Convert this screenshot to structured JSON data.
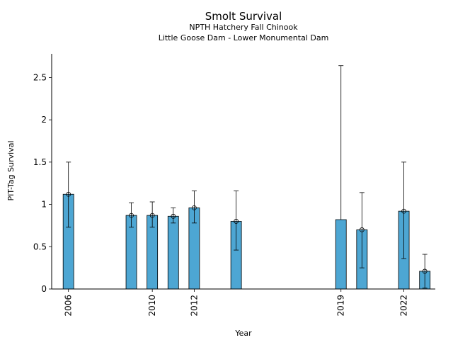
{
  "chart_data": {
    "type": "bar",
    "title": "Smolt Survival",
    "subtitle_lines": [
      "NPTH Hatchery Fall Chinook",
      "Little Goose Dam - Lower Monumental Dam"
    ],
    "xlabel": "Year",
    "ylabel": "PIT-Tag Survival",
    "xlim": [
      2005.2,
      2023.5
    ],
    "ylim": [
      0,
      2.78
    ],
    "x_ticks": [
      2006,
      2010,
      2012,
      2019,
      2022
    ],
    "y_ticks": [
      0,
      0.5,
      1,
      1.5,
      2,
      2.5
    ],
    "y_tick_labels": [
      "0",
      "0.5",
      "1",
      "1.5",
      "2",
      "2.5"
    ],
    "bar_color": "#4da6d3",
    "grid": false,
    "series": [
      {
        "points": [
          {
            "year": 2006,
            "value": 1.12,
            "lower": 0.73,
            "upper": 1.5,
            "marker": true
          },
          {
            "year": 2009,
            "value": 0.87,
            "lower": 0.73,
            "upper": 1.02,
            "marker": true
          },
          {
            "year": 2010,
            "value": 0.87,
            "lower": 0.73,
            "upper": 1.03,
            "marker": true
          },
          {
            "year": 2011,
            "value": 0.86,
            "lower": 0.78,
            "upper": 0.96,
            "marker": true
          },
          {
            "year": 2012,
            "value": 0.96,
            "lower": 0.78,
            "upper": 1.16,
            "marker": true
          },
          {
            "year": 2014,
            "value": 0.8,
            "lower": 0.46,
            "upper": 1.16,
            "marker": true
          },
          {
            "year": 2019,
            "value": 0.82,
            "lower": null,
            "upper": 2.64,
            "marker": false
          },
          {
            "year": 2020,
            "value": 0.7,
            "lower": 0.25,
            "upper": 1.14,
            "marker": true
          },
          {
            "year": 2022,
            "value": 0.92,
            "lower": 0.36,
            "upper": 1.5,
            "marker": true
          },
          {
            "year": 2023,
            "value": 0.21,
            "lower": 0.01,
            "upper": 0.41,
            "marker": true
          }
        ]
      }
    ]
  }
}
